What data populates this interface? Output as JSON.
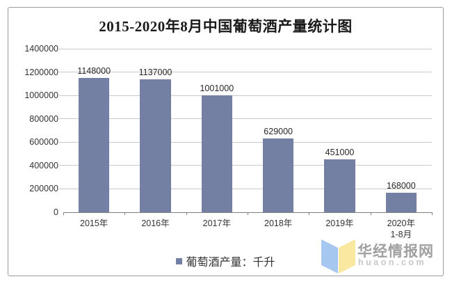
{
  "chart_data": {
    "type": "bar",
    "title": "2015-2020年8月中国葡萄酒产量统计图",
    "categories": [
      "2015年",
      "2016年",
      "2017年",
      "2018年",
      "2019年",
      "2020年"
    ],
    "categories_line2": [
      "",
      "",
      "",
      "",
      "",
      "1-8月"
    ],
    "values": [
      1148000,
      1137000,
      1001000,
      629000,
      451000,
      168000
    ],
    "bar_labels": [
      "1148000",
      "1137000",
      "1001000",
      "629000",
      "451000",
      "168000"
    ],
    "ylim": [
      0,
      1400000
    ],
    "yticks": [
      0,
      200000,
      400000,
      600000,
      800000,
      1000000,
      1200000,
      1400000
    ],
    "ytick_labels": [
      "0",
      "200000",
      "400000",
      "600000",
      "800000",
      "1000000",
      "1200000",
      "1400000"
    ],
    "grid": true,
    "legend_position": "bottom",
    "legend": "葡萄酒产量：千升",
    "bar_color": "#7380a3",
    "gridline_color": "#c9c9c9",
    "axis_color": "#808080"
  },
  "watermark": {
    "site_name": "华经情报网",
    "site_url": "huaon.com",
    "logo_blue": "#a6c8f0",
    "logo_yellow": "#fae7a0"
  }
}
